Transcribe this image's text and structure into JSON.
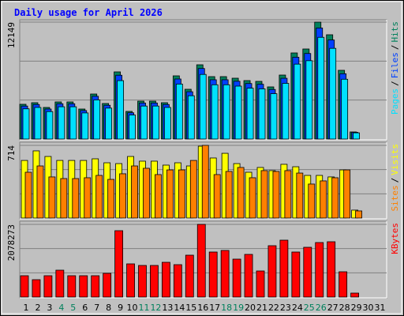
{
  "chart_data": [
    {
      "type": "bar",
      "title": "Daily usage for April 2026",
      "separator": "/",
      "ylim": [
        0,
        12149
      ],
      "yticks": [
        12149
      ],
      "series": [
        {
          "name": "Pages",
          "color": "#00e0ff",
          "values": [
            3140,
            3285,
            2855,
            3355,
            3355,
            2715,
            4070,
            3215,
            6070,
            2500,
            3430,
            3430,
            3285,
            5715,
            4500,
            6715,
            5640,
            5640,
            5500,
            5285,
            5215,
            4715,
            5785,
            7785,
            8140,
            10570,
            9425,
            6215,
            645,
            0,
            0
          ]
        },
        {
          "name": "Files",
          "color": "#0040ff",
          "values": [
            3430,
            3590,
            3120,
            3665,
            3665,
            2960,
            4445,
            3510,
            6630,
            2730,
            3745,
            3745,
            3590,
            6240,
            4915,
            7330,
            6160,
            6160,
            6005,
            5770,
            5695,
            5150,
            6315,
            8500,
            8890,
            11540,
            10295,
            6785,
            700,
            0,
            0
          ]
        },
        {
          "name": "Hits",
          "color": "#00805c",
          "values": [
            3612,
            3776,
            3284,
            3858,
            3858,
            3119,
            4679,
            3694,
            6978,
            2873,
            3940,
            3940,
            3776,
            6567,
            5172,
            7716,
            6485,
            6485,
            6321,
            6075,
            5993,
            5418,
            6649,
            8948,
            9358,
            12149,
            10836,
            7142,
            739,
            0,
            0
          ]
        }
      ]
    },
    {
      "type": "bar",
      "separator": "/",
      "ylim": [
        0,
        714
      ],
      "yticks": [
        714
      ],
      "series": [
        {
          "name": "Sites",
          "color": "#ff8000",
          "values": [
            450,
            512,
            404,
            388,
            388,
            396,
            419,
            380,
            435,
            512,
            489,
            427,
            473,
            473,
            566,
            714,
            427,
            458,
            497,
            396,
            466,
            458,
            466,
            442,
            334,
            365,
            396,
            473,
            70,
            0,
            0
          ]
        },
        {
          "name": "Visits",
          "color": "#ffff00",
          "values": [
            566,
            660,
            605,
            566,
            566,
            566,
            582,
            543,
            535,
            605,
            559,
            559,
            520,
            543,
            512,
            706,
            590,
            636,
            535,
            450,
            497,
            466,
            528,
            504,
            419,
            419,
            404,
            473,
            78,
            0,
            0
          ]
        }
      ]
    },
    {
      "type": "bar",
      "ylim": [
        0,
        2078273
      ],
      "yticks": [
        2078273
      ],
      "categories": [
        "1",
        "2",
        "3",
        "4",
        "5",
        "6",
        "7",
        "8",
        "9",
        "10",
        "11",
        "12",
        "13",
        "14",
        "15",
        "16",
        "17",
        "18",
        "19",
        "20",
        "21",
        "22",
        "23",
        "24",
        "25",
        "26",
        "27",
        "28",
        "29",
        "30",
        "31"
      ],
      "weekend_categories": [
        3,
        4,
        10,
        11,
        17,
        18,
        24,
        25
      ],
      "weekend_color": "#00805c",
      "series": [
        {
          "name": "KBytes",
          "color": "#ff0000",
          "values": [
            609930,
            496980,
            609930,
            768060,
            609930,
            609930,
            609930,
            677700,
            1897560,
            948780,
            903600,
            903600,
            993960,
            926190,
            1197270,
            2078273,
            1287630,
            1332810,
            1084320,
            1219860,
            745470,
            1468350,
            1626480,
            1287630,
            1423170,
            1558710,
            1581300,
            722880,
            112950,
            0,
            0
          ]
        }
      ]
    }
  ]
}
